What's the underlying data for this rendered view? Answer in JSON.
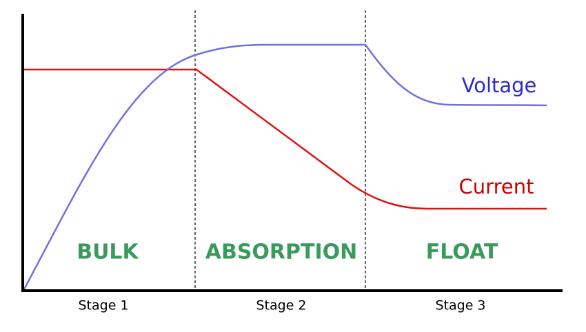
{
  "curves": [
    {
      "label": "Voltage"
    },
    {
      "label": "Current"
    }
  ],
  "stages": [
    {
      "name": "BULK",
      "label": "Stage 1"
    },
    {
      "name": "ABSORPTION",
      "label": "Stage 2"
    },
    {
      "name": "FLOAT",
      "label": "Stage 3"
    }
  ]
}
